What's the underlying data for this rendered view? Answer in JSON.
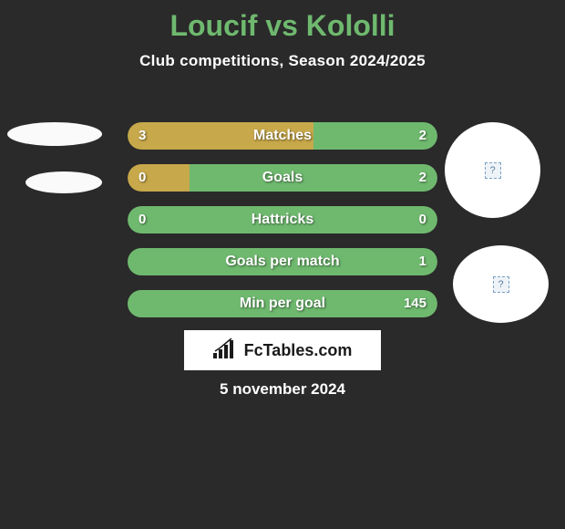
{
  "header": {
    "player1": "Loucif",
    "vs": "vs",
    "player2": "Kololli",
    "subtitle": "Club competitions, Season 2024/2025"
  },
  "colors": {
    "player1_bar": "#c7a84a",
    "player2_bar": "#6fb96f",
    "neutral_bar": "#6fb96f",
    "background": "#2a2a2a",
    "title_color": "#6fb96f",
    "text_color": "#ffffff",
    "ellipse_color": "#fafafa",
    "circle_color": "#ffffff",
    "brand_bg": "#ffffff"
  },
  "rows": [
    {
      "label": "Matches",
      "left": "3",
      "right": "2",
      "left_pct": 60,
      "right_pct": 40,
      "left_color": "#c7a84a",
      "right_color": "#6fb96f"
    },
    {
      "label": "Goals",
      "left": "0",
      "right": "2",
      "left_pct": 20,
      "right_pct": 80,
      "left_color": "#c7a84a",
      "right_color": "#6fb96f"
    },
    {
      "label": "Hattricks",
      "left": "0",
      "right": "0",
      "left_pct": 50,
      "right_pct": 50,
      "left_color": "#6fb96f",
      "right_color": "#6fb96f"
    },
    {
      "label": "Goals per match",
      "left": "",
      "right": "1",
      "left_pct": 0,
      "right_pct": 100,
      "left_color": "#c7a84a",
      "right_color": "#6fb96f"
    },
    {
      "label": "Min per goal",
      "left": "",
      "right": "145",
      "left_pct": 0,
      "right_pct": 100,
      "left_color": "#c7a84a",
      "right_color": "#6fb96f"
    }
  ],
  "brand": {
    "name": "FcTables.com"
  },
  "date": "5 november 2024",
  "placeholder_glyph": "?"
}
